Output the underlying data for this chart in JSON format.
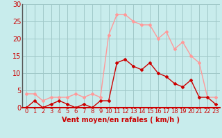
{
  "x": [
    0,
    1,
    2,
    3,
    4,
    5,
    6,
    7,
    8,
    9,
    10,
    11,
    12,
    13,
    14,
    15,
    16,
    17,
    18,
    19,
    20,
    21,
    22,
    23
  ],
  "vent_moyen": [
    0,
    2,
    0,
    1,
    2,
    1,
    0,
    1,
    0,
    2,
    2,
    13,
    14,
    12,
    11,
    13,
    10,
    9,
    7,
    6,
    8,
    3,
    3,
    1
  ],
  "rafales": [
    4,
    4,
    2,
    3,
    3,
    3,
    4,
    3,
    4,
    3,
    21,
    27,
    27,
    25,
    24,
    24,
    20,
    22,
    17,
    19,
    15,
    13,
    3,
    3
  ],
  "xlabel": "Vent moyen/en rafales ( km/h )",
  "ylim": [
    0,
    30
  ],
  "xlim_min": -0.5,
  "xlim_max": 23.5,
  "yticks": [
    0,
    5,
    10,
    15,
    20,
    25,
    30
  ],
  "xticks": [
    0,
    1,
    2,
    3,
    4,
    5,
    6,
    7,
    8,
    9,
    10,
    11,
    12,
    13,
    14,
    15,
    16,
    17,
    18,
    19,
    20,
    21,
    22,
    23
  ],
  "bg_color": "#c8ecec",
  "grid_color": "#a0c8c8",
  "moyen_color": "#cc0000",
  "rafales_color": "#ff9999",
  "marker": "D",
  "marker_size": 2,
  "line_width": 1.0,
  "xlabel_color": "#cc0000",
  "xlabel_fontsize": 7,
  "tick_fontsize": 6,
  "ytick_fontsize": 7,
  "left_spine_color": "#555555"
}
